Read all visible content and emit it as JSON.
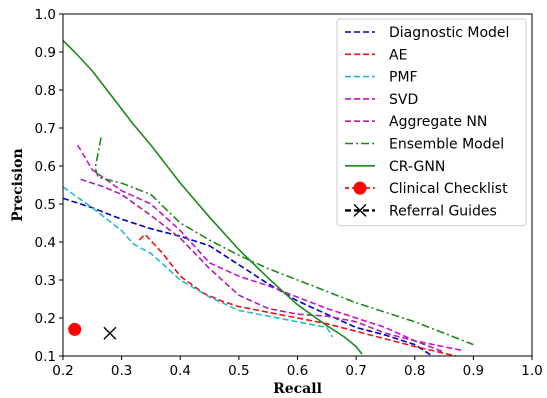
{
  "chart_data": {
    "type": "line",
    "xlabel": "Recall",
    "ylabel": "Precision",
    "xlim": [
      0.2,
      1.0
    ],
    "ylim": [
      0.1,
      1.0
    ],
    "xticks": [
      "0.2",
      "0.3",
      "0.4",
      "0.5",
      "0.6",
      "0.7",
      "0.8",
      "0.9",
      "1.0"
    ],
    "yticks": [
      "0.1",
      "0.2",
      "0.3",
      "0.4",
      "0.5",
      "0.6",
      "0.7",
      "0.8",
      "0.9",
      "1.0"
    ],
    "grid": false,
    "legend_position": "top-right",
    "series": [
      {
        "name": "Diagnostic Model",
        "color": "#0000cc",
        "style": "dashed",
        "x": [
          0.2,
          0.25,
          0.3,
          0.35,
          0.4,
          0.45,
          0.5,
          0.55,
          0.6,
          0.65,
          0.7,
          0.75,
          0.8,
          0.83
        ],
        "y": [
          0.515,
          0.49,
          0.46,
          0.435,
          0.415,
          0.39,
          0.34,
          0.29,
          0.245,
          0.21,
          0.175,
          0.155,
          0.13,
          0.1
        ]
      },
      {
        "name": "AE",
        "color": "#ee1111",
        "style": "dashed",
        "x": [
          0.33,
          0.34,
          0.37,
          0.4,
          0.44,
          0.47,
          0.5,
          0.55,
          0.6,
          0.65,
          0.7,
          0.75,
          0.8,
          0.87
        ],
        "y": [
          0.405,
          0.42,
          0.37,
          0.31,
          0.265,
          0.245,
          0.23,
          0.215,
          0.2,
          0.185,
          0.165,
          0.145,
          0.125,
          0.1
        ]
      },
      {
        "name": "PMF",
        "color": "#22bbcc",
        "style": "dashed",
        "x": [
          0.2,
          0.25,
          0.3,
          0.32,
          0.35,
          0.4,
          0.45,
          0.5,
          0.55,
          0.6,
          0.65,
          0.66
        ],
        "y": [
          0.545,
          0.49,
          0.43,
          0.395,
          0.37,
          0.3,
          0.255,
          0.22,
          0.205,
          0.19,
          0.175,
          0.15
        ]
      },
      {
        "name": "SVD",
        "color": "#cc11cc",
        "style": "dashed",
        "x": [
          0.225,
          0.25,
          0.3,
          0.35,
          0.4,
          0.45,
          0.5,
          0.55,
          0.6,
          0.65,
          0.7,
          0.75,
          0.8,
          0.88
        ],
        "y": [
          0.655,
          0.59,
          0.535,
          0.5,
          0.43,
          0.345,
          0.31,
          0.285,
          0.255,
          0.225,
          0.2,
          0.175,
          0.14,
          0.115
        ]
      },
      {
        "name": "Aggregate NN",
        "color": "#aa22aa",
        "style": "dashed",
        "x": [
          0.23,
          0.27,
          0.3,
          0.35,
          0.4,
          0.45,
          0.5,
          0.55,
          0.6,
          0.65,
          0.7,
          0.75,
          0.8,
          0.85
        ],
        "y": [
          0.565,
          0.545,
          0.525,
          0.47,
          0.41,
          0.33,
          0.26,
          0.225,
          0.21,
          0.205,
          0.19,
          0.16,
          0.14,
          0.11
        ]
      },
      {
        "name": "Ensemble Model",
        "color": "#1a8a1a",
        "style": "dashdot",
        "x": [
          0.265,
          0.255,
          0.26,
          0.3,
          0.35,
          0.4,
          0.45,
          0.5,
          0.55,
          0.6,
          0.65,
          0.7,
          0.75,
          0.8,
          0.85,
          0.9
        ],
        "y": [
          0.675,
          0.595,
          0.57,
          0.555,
          0.525,
          0.45,
          0.405,
          0.365,
          0.33,
          0.3,
          0.27,
          0.24,
          0.215,
          0.19,
          0.16,
          0.13
        ]
      },
      {
        "name": "CR-GNN",
        "color": "#1a8a1a",
        "style": "solid",
        "x": [
          0.2,
          0.22,
          0.25,
          0.28,
          0.3,
          0.32,
          0.35,
          0.38,
          0.4,
          0.45,
          0.5,
          0.55,
          0.6,
          0.65,
          0.68,
          0.7,
          0.71
        ],
        "y": [
          0.93,
          0.9,
          0.85,
          0.79,
          0.75,
          0.71,
          0.655,
          0.595,
          0.555,
          0.465,
          0.38,
          0.305,
          0.235,
          0.18,
          0.15,
          0.125,
          0.105
        ]
      }
    ],
    "points": [
      {
        "name": "Clinical Checklist",
        "color": "#ff0000",
        "marker": "circle",
        "x": 0.22,
        "y": 0.17
      },
      {
        "name": "Referral Guides",
        "color": "#000000",
        "marker": "x",
        "x": 0.28,
        "y": 0.16
      }
    ]
  }
}
